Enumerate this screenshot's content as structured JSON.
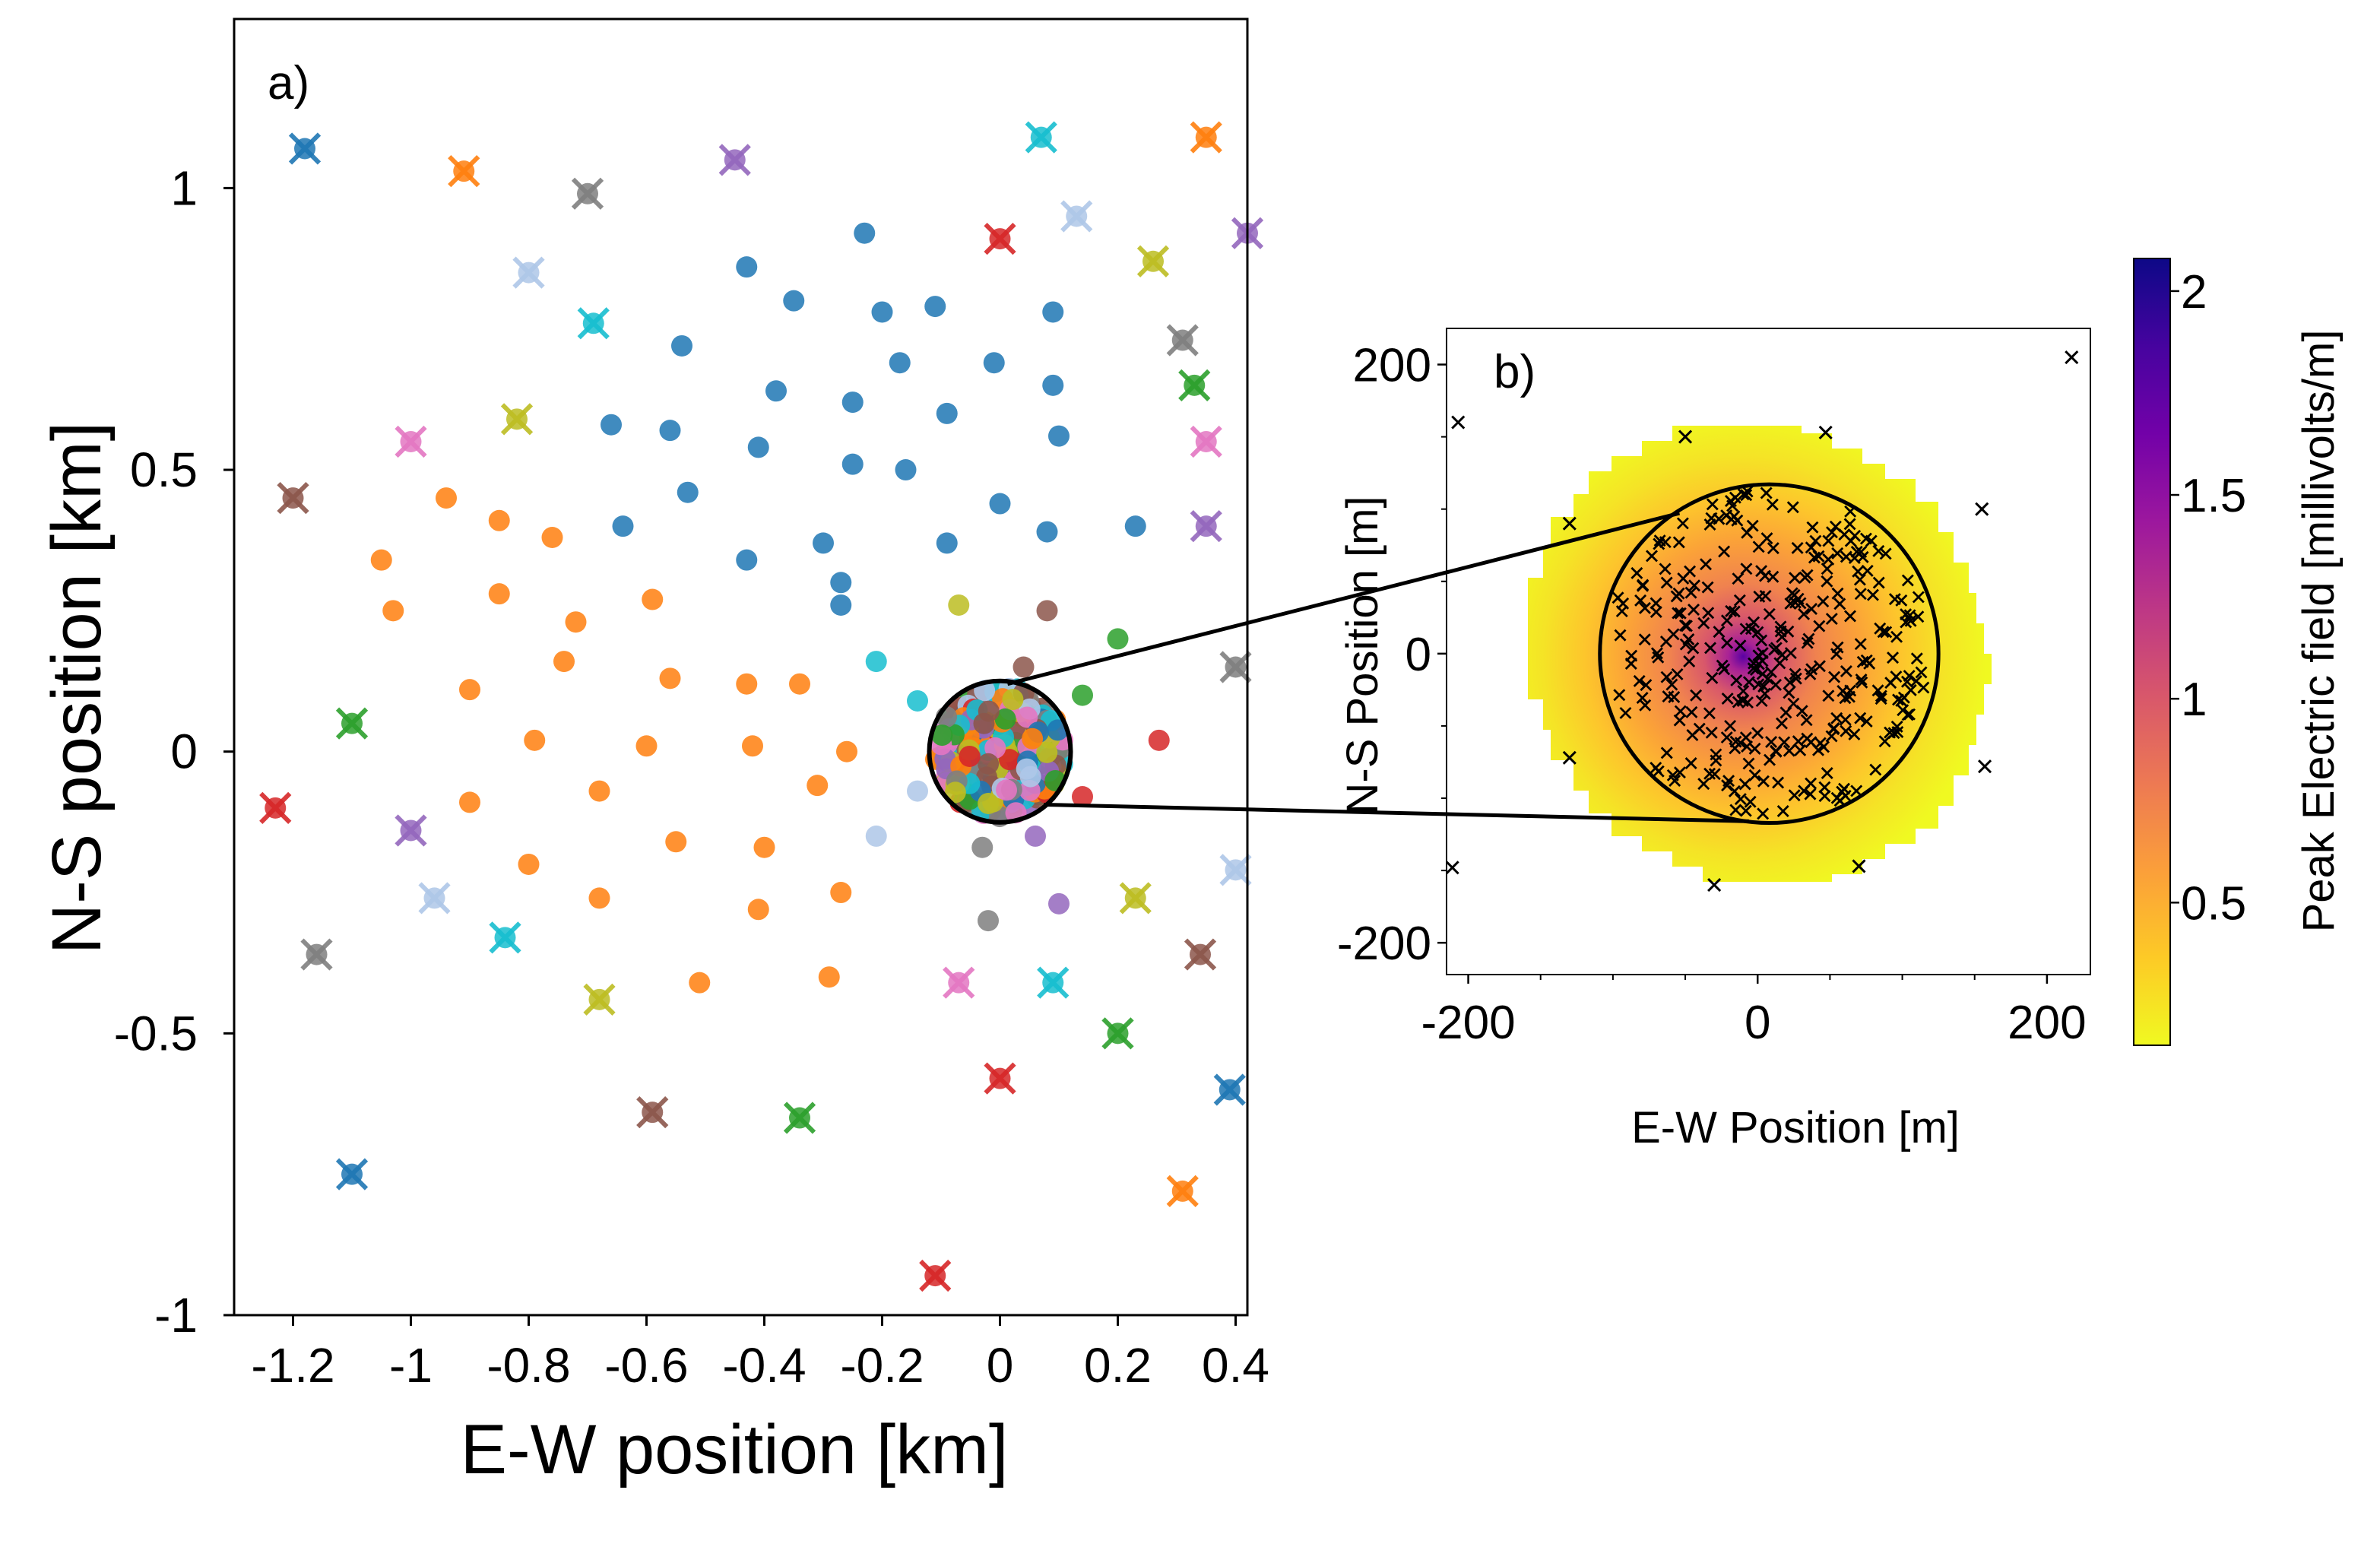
{
  "chart_data": [
    {
      "panel": "a)",
      "type": "scatter",
      "xlabel": "E-W position [km]",
      "ylabel": "N-S position [km]",
      "xlim": [
        -1.3,
        0.42
      ],
      "ylim": [
        -1.0,
        1.3
      ],
      "xticks": [
        "-1.2",
        "-1",
        "-0.8",
        "-0.6",
        "-0.4",
        "-0.2",
        "0",
        "0.2",
        "0.4"
      ],
      "xtick_values": [
        -1.2,
        -1.0,
        -0.8,
        -0.6,
        -0.4,
        -0.2,
        0.0,
        0.2,
        0.4
      ],
      "yticks": [
        "1",
        "0.5",
        "0",
        "-0.5",
        "-1"
      ],
      "ytick_values": [
        1.0,
        0.5,
        0.0,
        -0.5,
        -1.0
      ],
      "grid": false,
      "colors": {
        "blue": "#1f77b4",
        "orange": "#ff7f0e",
        "green": "#2ca02c",
        "red": "#d62728",
        "purple": "#9467bd",
        "brown": "#8c564b",
        "pink": "#e377c2",
        "gray": "#7f7f7f",
        "olive": "#bcbd22",
        "cyan": "#17becf",
        "lightblue": "#aec7e8"
      },
      "series": [
        {
          "marker": "dot",
          "color": "#1f77b4",
          "points": [
            [
              -0.23,
              0.92
            ],
            [
              -0.43,
              0.86
            ],
            [
              -0.35,
              0.8
            ],
            [
              -0.2,
              0.78
            ],
            [
              -0.11,
              0.79
            ],
            [
              0.09,
              0.78
            ],
            [
              -0.54,
              0.72
            ],
            [
              -0.17,
              0.69
            ],
            [
              -0.01,
              0.69
            ],
            [
              -0.38,
              0.64
            ],
            [
              -0.25,
              0.62
            ],
            [
              -0.09,
              0.6
            ],
            [
              0.09,
              0.65
            ],
            [
              -0.66,
              0.58
            ],
            [
              -0.56,
              0.57
            ],
            [
              -0.41,
              0.54
            ],
            [
              0.1,
              0.56
            ],
            [
              -0.25,
              0.51
            ],
            [
              -0.16,
              0.5
            ],
            [
              -0.53,
              0.46
            ],
            [
              0.0,
              0.44
            ],
            [
              -0.64,
              0.4
            ],
            [
              -0.43,
              0.34
            ],
            [
              -0.3,
              0.37
            ],
            [
              -0.09,
              0.37
            ],
            [
              0.08,
              0.39
            ],
            [
              0.23,
              0.4
            ],
            [
              -0.27,
              0.3
            ],
            [
              -0.27,
              0.26
            ]
          ]
        },
        {
          "marker": "dot",
          "color": "#ff7f0e",
          "points": [
            [
              -0.94,
              0.45
            ],
            [
              -0.85,
              0.41
            ],
            [
              -0.76,
              0.38
            ],
            [
              -1.05,
              0.34
            ],
            [
              -1.03,
              0.25
            ],
            [
              -0.85,
              0.28
            ],
            [
              -0.72,
              0.23
            ],
            [
              -0.59,
              0.27
            ],
            [
              -0.74,
              0.16
            ],
            [
              -0.56,
              0.13
            ],
            [
              -0.43,
              0.12
            ],
            [
              -0.34,
              0.12
            ],
            [
              -0.9,
              0.11
            ],
            [
              -0.79,
              0.02
            ],
            [
              -0.6,
              0.01
            ],
            [
              -0.42,
              0.01
            ],
            [
              -0.26,
              0.0
            ],
            [
              -0.68,
              -0.07
            ],
            [
              -0.31,
              -0.06
            ],
            [
              -0.9,
              -0.09
            ],
            [
              -0.55,
              -0.16
            ],
            [
              -0.4,
              -0.17
            ],
            [
              -0.8,
              -0.2
            ],
            [
              -0.27,
              -0.25
            ],
            [
              -0.68,
              -0.26
            ],
            [
              -0.41,
              -0.28
            ],
            [
              -0.51,
              -0.41
            ],
            [
              -0.29,
              -0.4
            ]
          ]
        },
        {
          "marker": "dot",
          "color": "#17becf",
          "points": [
            [
              -0.21,
              0.16
            ],
            [
              -0.14,
              0.09
            ]
          ]
        },
        {
          "marker": "dot",
          "color": "#aec7e8",
          "points": [
            [
              -0.14,
              -0.07
            ],
            [
              -0.21,
              -0.15
            ]
          ]
        },
        {
          "marker": "dot",
          "color": "#bcbd22",
          "points": [
            [
              -0.07,
              0.26
            ]
          ]
        },
        {
          "marker": "dot",
          "color": "#8c564b",
          "points": [
            [
              0.08,
              0.25
            ],
            [
              0.04,
              0.15
            ]
          ]
        },
        {
          "marker": "dot",
          "color": "#2ca02c",
          "points": [
            [
              0.2,
              0.2
            ],
            [
              0.14,
              0.1
            ]
          ]
        },
        {
          "marker": "dot",
          "color": "#d62728",
          "points": [
            [
              0.27,
              0.02
            ],
            [
              0.14,
              -0.08
            ]
          ]
        },
        {
          "marker": "dot",
          "color": "#9467bd",
          "points": [
            [
              0.06,
              -0.15
            ],
            [
              0.1,
              -0.27
            ]
          ]
        },
        {
          "marker": "dot",
          "color": "#7f7f7f",
          "points": [
            [
              -0.03,
              -0.17
            ],
            [
              -0.02,
              -0.3
            ]
          ]
        },
        {
          "marker": "x-dot",
          "points": [
            [
              -1.18,
              1.07,
              "#1f77b4"
            ],
            [
              -0.91,
              1.03,
              "#ff7f0e"
            ],
            [
              -0.7,
              0.99,
              "#7f7f7f"
            ],
            [
              -0.45,
              1.05,
              "#9467bd"
            ],
            [
              0.07,
              1.09,
              "#17becf"
            ],
            [
              0.35,
              1.09,
              "#ff7f0e"
            ],
            [
              0.0,
              0.91,
              "#d62728"
            ],
            [
              0.13,
              0.95,
              "#aec7e8"
            ],
            [
              0.26,
              0.87,
              "#bcbd22"
            ],
            [
              0.42,
              0.92,
              "#9467bd"
            ],
            [
              -0.8,
              0.85,
              "#aec7e8"
            ],
            [
              -0.69,
              0.76,
              "#17becf"
            ],
            [
              0.31,
              0.73,
              "#7f7f7f"
            ],
            [
              0.33,
              0.65,
              "#2ca02c"
            ],
            [
              -1.0,
              0.55,
              "#e377c2"
            ],
            [
              -0.82,
              0.59,
              "#bcbd22"
            ],
            [
              0.35,
              0.55,
              "#e377c2"
            ],
            [
              -1.2,
              0.45,
              "#8c564b"
            ],
            [
              0.35,
              0.4,
              "#9467bd"
            ],
            [
              0.4,
              0.15,
              "#7f7f7f"
            ],
            [
              -1.1,
              0.05,
              "#2ca02c"
            ],
            [
              -1.23,
              -0.1,
              "#d62728"
            ],
            [
              -1.0,
              -0.14,
              "#9467bd"
            ],
            [
              -0.96,
              -0.26,
              "#aec7e8"
            ],
            [
              0.4,
              -0.21,
              "#aec7e8"
            ],
            [
              0.23,
              -0.26,
              "#bcbd22"
            ],
            [
              -0.84,
              -0.33,
              "#17becf"
            ],
            [
              -1.16,
              -0.36,
              "#7f7f7f"
            ],
            [
              0.34,
              -0.36,
              "#8c564b"
            ],
            [
              -0.07,
              -0.41,
              "#e377c2"
            ],
            [
              0.09,
              -0.41,
              "#17becf"
            ],
            [
              -0.68,
              -0.44,
              "#bcbd22"
            ],
            [
              0.2,
              -0.5,
              "#2ca02c"
            ],
            [
              0.0,
              -0.58,
              "#d62728"
            ],
            [
              0.39,
              -0.6,
              "#1f77b4"
            ],
            [
              -0.59,
              -0.64,
              "#8c564b"
            ],
            [
              -0.34,
              -0.65,
              "#2ca02c"
            ],
            [
              -1.1,
              -0.75,
              "#1f77b4"
            ],
            [
              0.31,
              -0.78,
              "#ff7f0e"
            ],
            [
              -0.11,
              -0.93,
              "#d62728"
            ]
          ]
        }
      ],
      "cluster": {
        "center": [
          0.0,
          0.0
        ],
        "radius_km": 0.12,
        "colors": [
          "#bcbd22",
          "#8c564b",
          "#d62728",
          "#2ca02c",
          "#1f77b4",
          "#17becf",
          "#e377c2",
          "#9467bd",
          "#7f7f7f",
          "#aec7e8",
          "#ff7f0e"
        ]
      }
    },
    {
      "panel": "b)",
      "type": "heatmap",
      "xlabel": "E-W Position [m]",
      "ylabel": "N-S Position [m]",
      "xlim": [
        -215,
        230
      ],
      "ylim": [
        -222,
        225
      ],
      "xticks": [
        "-200",
        "0",
        "200"
      ],
      "xtick_values": [
        -200,
        0,
        200
      ],
      "yticks": [
        "200",
        "0",
        "-200"
      ],
      "ytick_values": [
        200,
        0,
        -200
      ],
      "colorbar": {
        "label": "Peak Electric field [millivolts/m]",
        "ticks": [
          "2",
          "1.5",
          "1",
          "0.5"
        ],
        "tick_values": [
          2.0,
          1.5,
          1.0,
          0.5
        ],
        "range": [
          0.15,
          2.08
        ],
        "colormap": "plasma",
        "colormap_stops": [
          "#f0f921",
          "#fdca26",
          "#fb9f3a",
          "#ed7953",
          "#d8576b",
          "#bd3786",
          "#9c179e",
          "#7201a8",
          "#46039f",
          "#0d0887"
        ]
      },
      "field_disk_radius_m": 160,
      "circle_radius_m": 117,
      "circle_center_m": [
        8,
        0
      ],
      "field_peak_m": [
        -10,
        -2
      ],
      "field_peak_value": 2.08,
      "outer_markers": [
        [
          -207,
          160
        ],
        [
          -50,
          150
        ],
        [
          47,
          153
        ],
        [
          217,
          205
        ],
        [
          -130,
          90
        ],
        [
          155,
          100
        ],
        [
          -130,
          -72
        ],
        [
          157,
          -78
        ],
        [
          -211,
          -148
        ],
        [
          -30,
          -160
        ],
        [
          70,
          -147
        ]
      ],
      "inner_marker_count": 330
    }
  ],
  "annotations": {
    "zoom_lines": "panel a circle at origin connected to panel b circle"
  }
}
